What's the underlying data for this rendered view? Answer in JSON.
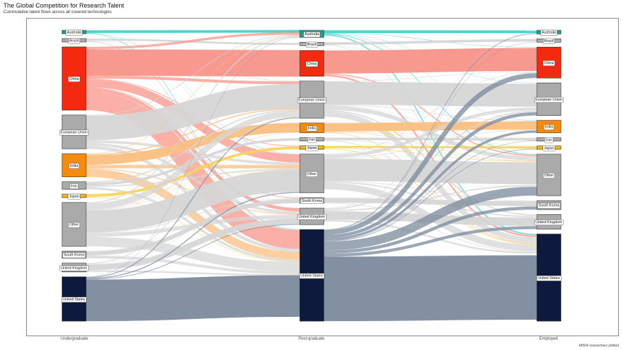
{
  "header": {
    "title": "The Global Competition for Research Talent",
    "subtitle": "Cummulative talent flows across all covered technologies"
  },
  "footer": {
    "note": "48504 researchers plotted"
  },
  "chart_data": {
    "type": "sankey",
    "title": "The Global Competition for Research Talent",
    "subtitle": "Cummulative talent flows across all covered technologies",
    "stages": [
      "Undergraduate",
      "Post-graduate",
      "Employed"
    ],
    "total_researchers": 48504,
    "countries": [
      "Australia",
      "Brazil",
      "China",
      "European Union",
      "India",
      "Iran",
      "Japan",
      "Other",
      "South Korea",
      "United Kingdom",
      "United States"
    ],
    "colors": {
      "Australia": "#1f9e8f",
      "Brazil": "#aaaaaa",
      "China": "#f42a10",
      "European Union": "#aaaaaa",
      "India": "#f58a0b",
      "Iran": "#aaaaaa",
      "Japan": "#f3b51d",
      "Other": "#aaaaaa",
      "South Korea": "#aaaaaa",
      "United Kingdom": "#aaaaaa",
      "United States": "#0d1a3e"
    },
    "flow_colors": {
      "Australia": "#47d3c9",
      "Brazil": "#d6d6d6",
      "China": "#f8948a",
      "European Union": "#d6d6d6",
      "India": "#fbbf80",
      "Iran": "#d6d6d6",
      "Japan": "#f8d45a",
      "Other": "#d6d6d6",
      "South Korea": "#d6d6d6",
      "United Kingdom": "#d6d6d6",
      "United States": "#7b8a9d"
    },
    "undergrad_to_postgrad": [
      [
        "Australia",
        "Australia",
        220
      ],
      [
        "Australia",
        "United States",
        40
      ],
      [
        "Australia",
        "Other",
        20
      ],
      [
        "Brazil",
        "Brazil",
        160
      ],
      [
        "Brazil",
        "United States",
        60
      ],
      [
        "Brazil",
        "European Union",
        40
      ],
      [
        "Brazil",
        "Other",
        30
      ],
      [
        "China",
        "China",
        2800
      ],
      [
        "China",
        "United States",
        2000
      ],
      [
        "China",
        "Other",
        850
      ],
      [
        "China",
        "European Union",
        300
      ],
      [
        "China",
        "United Kingdom",
        350
      ],
      [
        "China",
        "Australia",
        250
      ],
      [
        "China",
        "South Korea",
        70
      ],
      [
        "China",
        "Japan",
        80
      ],
      [
        "European Union",
        "European Union",
        2600
      ],
      [
        "European Union",
        "United States",
        350
      ],
      [
        "European Union",
        "Other",
        280
      ],
      [
        "European Union",
        "United Kingdom",
        280
      ],
      [
        "European Union",
        "Australia",
        70
      ],
      [
        "India",
        "India",
        1000
      ],
      [
        "India",
        "United States",
        820
      ],
      [
        "India",
        "Other",
        380
      ],
      [
        "India",
        "European Union",
        120
      ],
      [
        "India",
        "United Kingdom",
        90
      ],
      [
        "India",
        "Australia",
        50
      ],
      [
        "Iran",
        "Iran",
        260
      ],
      [
        "Iran",
        "United States",
        250
      ],
      [
        "Iran",
        "European Union",
        150
      ],
      [
        "Iran",
        "Other",
        150
      ],
      [
        "Japan",
        "Japan",
        200
      ],
      [
        "Japan",
        "United States",
        40
      ],
      [
        "Japan",
        "Other",
        25
      ],
      [
        "Other",
        "Other",
        2300
      ],
      [
        "Other",
        "United States",
        1000
      ],
      [
        "Other",
        "European Union",
        640
      ],
      [
        "Other",
        "United Kingdom",
        410
      ],
      [
        "Other",
        "South Korea",
        70
      ],
      [
        "Other",
        "Australia",
        120
      ],
      [
        "Other",
        "India",
        60
      ],
      [
        "Other",
        "Japan",
        35
      ],
      [
        "South Korea",
        "South Korea",
        440
      ],
      [
        "South Korea",
        "United States",
        290
      ],
      [
        "South Korea",
        "Other",
        30
      ],
      [
        "United Kingdom",
        "United Kingdom",
        600
      ],
      [
        "United Kingdom",
        "United States",
        180
      ],
      [
        "United Kingdom",
        "European Union",
        90
      ],
      [
        "United Kingdom",
        "Other",
        40
      ],
      [
        "United Kingdom",
        "Australia",
        30
      ],
      [
        "United States",
        "United States",
        4400
      ],
      [
        "United States",
        "Other",
        100
      ],
      [
        "United States",
        "European Union",
        90
      ],
      [
        "United States",
        "United Kingdom",
        70
      ],
      [
        "United States",
        "Australia",
        30
      ]
    ],
    "postgrad_to_employed": [
      [
        "Australia",
        "Australia",
        300
      ],
      [
        "Australia",
        "United States",
        120
      ],
      [
        "Australia",
        "Other",
        70
      ],
      [
        "Australia",
        "China",
        40
      ],
      [
        "Australia",
        "European Union",
        30
      ],
      [
        "Australia",
        "India",
        10
      ],
      [
        "Brazil",
        "Brazil",
        120
      ],
      [
        "Brazil",
        "United States",
        25
      ],
      [
        "Brazil",
        "Other",
        15
      ],
      [
        "China",
        "China",
        2500
      ],
      [
        "China",
        "United States",
        180
      ],
      [
        "China",
        "Other",
        120
      ],
      [
        "European Union",
        "European Union",
        2500
      ],
      [
        "European Union",
        "United States",
        600
      ],
      [
        "European Union",
        "Other",
        450
      ],
      [
        "European Union",
        "United Kingdom",
        150
      ],
      [
        "European Union",
        "China",
        60
      ],
      [
        "European Union",
        "India",
        70
      ],
      [
        "European Union",
        "Japan",
        40
      ],
      [
        "India",
        "India",
        900
      ],
      [
        "India",
        "United States",
        60
      ],
      [
        "India",
        "Other",
        40
      ],
      [
        "India",
        "Iran",
        30
      ],
      [
        "India",
        "Japan",
        30
      ],
      [
        "Iran",
        "Iran",
        180
      ],
      [
        "Iran",
        "United States",
        50
      ],
      [
        "Iran",
        "Other",
        30
      ],
      [
        "Japan",
        "Japan",
        170
      ],
      [
        "Japan",
        "United States",
        60
      ],
      [
        "Japan",
        "Other",
        50
      ],
      [
        "Other",
        "Other",
        2400
      ],
      [
        "Other",
        "United States",
        700
      ],
      [
        "Other",
        "European Union",
        350
      ],
      [
        "Other",
        "United Kingdom",
        150
      ],
      [
        "Other",
        "China",
        60
      ],
      [
        "Other",
        "India",
        60
      ],
      [
        "Other",
        "South Korea",
        70
      ],
      [
        "Other",
        "Japan",
        30
      ],
      [
        "South Korea",
        "South Korea",
        520
      ],
      [
        "South Korea",
        "United States",
        60
      ],
      [
        "South Korea",
        "Other",
        30
      ],
      [
        "United Kingdom",
        "United Kingdom",
        900
      ],
      [
        "United Kingdom",
        "United States",
        200
      ],
      [
        "United Kingdom",
        "Other",
        150
      ],
      [
        "United Kingdom",
        "European Union",
        150
      ],
      [
        "United Kingdom",
        "China",
        40
      ],
      [
        "United Kingdom",
        "Australia",
        20
      ],
      [
        "United States",
        "United States",
        7000
      ],
      [
        "United States",
        "China",
        520
      ],
      [
        "United States",
        "Other",
        960
      ],
      [
        "United States",
        "European Union",
        360
      ],
      [
        "United States",
        "South Korea",
        350
      ],
      [
        "United States",
        "United Kingdom",
        330
      ],
      [
        "United States",
        "India",
        260
      ],
      [
        "United States",
        "Australia",
        60
      ],
      [
        "United States",
        "Iran",
        40
      ],
      [
        "United States",
        "Japan",
        60
      ],
      [
        "United States",
        "Brazil",
        20
      ]
    ]
  }
}
